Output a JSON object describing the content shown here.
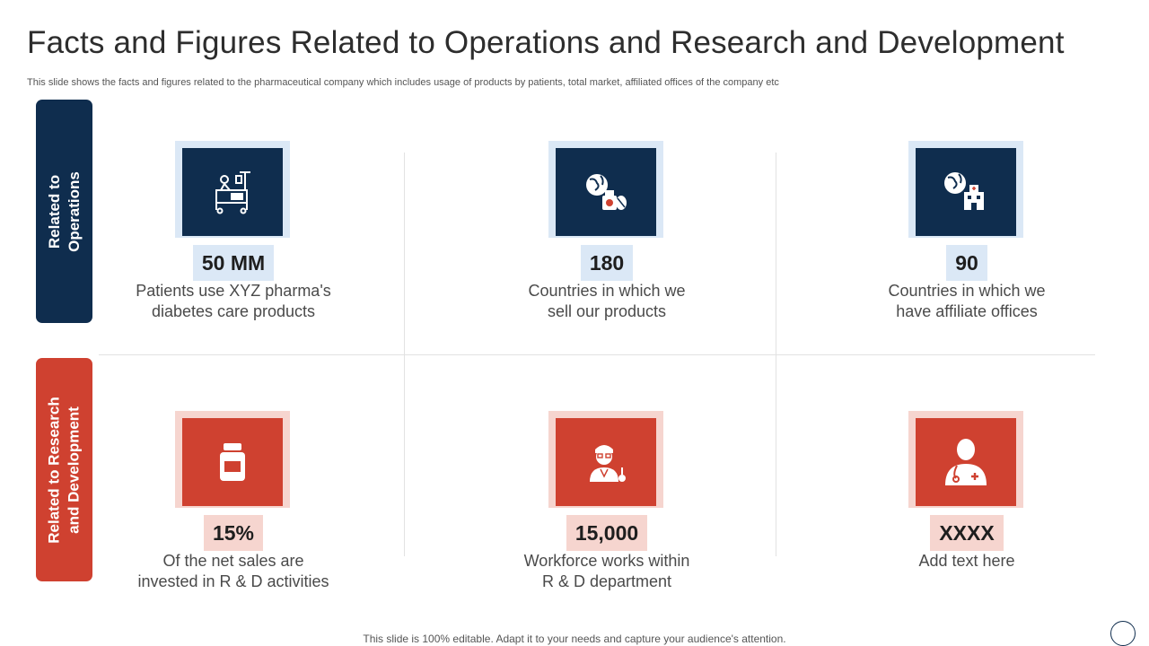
{
  "slide": {
    "title": "Facts and Figures Related to Operations and Research and Development",
    "subtitle": "This slide shows the facts and figures related to the pharmaceutical company which includes usage of products by patients, total market, affiliated offices of the company etc",
    "footer": "This slide is 100% editable. Adapt it to your needs and capture your audience's attention."
  },
  "sections": {
    "operations": {
      "label_line1": "Related to",
      "label_line2": "Operations"
    },
    "rnd": {
      "label_line1": "Related to Research",
      "label_line2": "and Development"
    }
  },
  "cards": {
    "c1": {
      "value": "50 MM",
      "line1": "Patients use XYZ pharma's",
      "line2": "diabetes care products",
      "icon": "hospital-bed-icon"
    },
    "c2": {
      "value": "180",
      "line1": "Countries in which we",
      "line2": "sell our products",
      "icon": "globe-medicine-icon"
    },
    "c3": {
      "value": "90",
      "line1": "Countries in which we",
      "line2": "have affiliate offices",
      "icon": "globe-hospital-icon"
    },
    "c4": {
      "value": "15%",
      "line1": "Of the net sales are",
      "line2": "invested in R & D activities",
      "icon": "medicine-bottle-icon"
    },
    "c5": {
      "value": "15,000",
      "line1": "Workforce works within",
      "line2": "R & D department",
      "icon": "scientist-icon"
    },
    "c6": {
      "value": "XXXX",
      "line1": "Add text here",
      "line2": "",
      "icon": "doctor-icon"
    }
  },
  "colors": {
    "navy": "#0f2d4e",
    "red": "#cf4130",
    "light_blue": "#dbe8f6",
    "light_red": "#f6d5cf"
  }
}
